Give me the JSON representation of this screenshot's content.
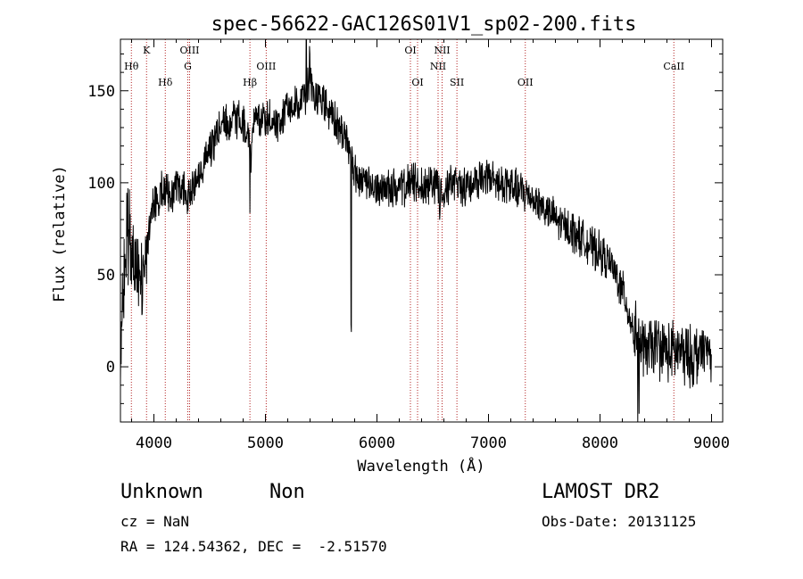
{
  "chart_data": {
    "type": "line",
    "title": "spec-56622-GAC126S01V1_sp02-200.fits",
    "xlabel": "Wavelength (Å)",
    "ylabel": "Flux (relative)",
    "xlim": [
      3700,
      9100
    ],
    "ylim": [
      -30,
      178
    ],
    "xticks": [
      4000,
      5000,
      6000,
      7000,
      8000,
      9000
    ],
    "yticks": [
      0,
      50,
      100,
      150
    ],
    "grid": false,
    "legend": "none",
    "spectrum_anchors": [
      [
        3700,
        15
      ],
      [
        3720,
        40
      ],
      [
        3760,
        75
      ],
      [
        3800,
        62
      ],
      [
        3850,
        52
      ],
      [
        3900,
        50
      ],
      [
        3950,
        70
      ],
      [
        4000,
        88
      ],
      [
        4050,
        92
      ],
      [
        4100,
        98
      ],
      [
        4150,
        92
      ],
      [
        4200,
        100
      ],
      [
        4300,
        95
      ],
      [
        4400,
        105
      ],
      [
        4500,
        118
      ],
      [
        4600,
        130
      ],
      [
        4700,
        134
      ],
      [
        4800,
        133
      ],
      [
        4870,
        115
      ],
      [
        4900,
        132
      ],
      [
        5000,
        135
      ],
      [
        5100,
        132
      ],
      [
        5200,
        140
      ],
      [
        5300,
        143
      ],
      [
        5400,
        152
      ],
      [
        5500,
        145
      ],
      [
        5600,
        135
      ],
      [
        5700,
        126
      ],
      [
        5760,
        118
      ],
      [
        5800,
        105
      ],
      [
        5900,
        98
      ],
      [
        6000,
        96
      ],
      [
        6100,
        98
      ],
      [
        6200,
        96
      ],
      [
        6300,
        100
      ],
      [
        6400,
        98
      ],
      [
        6500,
        100
      ],
      [
        6600,
        97
      ],
      [
        6700,
        100
      ],
      [
        6800,
        98
      ],
      [
        6900,
        102
      ],
      [
        7000,
        102
      ],
      [
        7100,
        100
      ],
      [
        7200,
        98
      ],
      [
        7300,
        95
      ],
      [
        7400,
        92
      ],
      [
        7500,
        86
      ],
      [
        7600,
        80
      ],
      [
        7700,
        76
      ],
      [
        7800,
        72
      ],
      [
        7900,
        66
      ],
      [
        8000,
        62
      ],
      [
        8100,
        55
      ],
      [
        8200,
        42
      ],
      [
        8300,
        20
      ],
      [
        8400,
        8
      ],
      [
        8500,
        12
      ],
      [
        8600,
        8
      ],
      [
        8700,
        8
      ],
      [
        8800,
        5
      ],
      [
        8900,
        8
      ],
      [
        9000,
        8
      ]
    ],
    "spectrum_features": [
      [
        3934,
        -18
      ],
      [
        4102,
        -12
      ],
      [
        4340,
        -10
      ],
      [
        4861,
        -30
      ],
      [
        5367,
        25
      ],
      [
        5397,
        22
      ],
      [
        5768,
        -90
      ],
      [
        6563,
        -18
      ],
      [
        8340,
        -35
      ],
      [
        8350,
        -25
      ]
    ],
    "noise_amplitude": 9,
    "lines": [
      {
        "label": "Hθ",
        "wavelength": 3798,
        "row": 2
      },
      {
        "label": "K",
        "wavelength": 3934,
        "row": 0
      },
      {
        "label": "Hδ",
        "wavelength": 4102,
        "row": 3
      },
      {
        "label": "OIII",
        "wavelength": 4320,
        "row": 0
      },
      {
        "label": "G",
        "wavelength": 4304,
        "row": 2
      },
      {
        "label": "Hβ",
        "wavelength": 4861,
        "row": 3
      },
      {
        "label": "OIII",
        "wavelength": 5007,
        "row": 2
      },
      {
        "label": "OI",
        "wavelength": 6300,
        "row": 0
      },
      {
        "label": "OI",
        "wavelength": 6364,
        "row": 3
      },
      {
        "label": "NII",
        "wavelength": 6548,
        "row": 2
      },
      {
        "label": "NII",
        "wavelength": 6584,
        "row": 0
      },
      {
        "label": "SII",
        "wavelength": 6717,
        "row": 3
      },
      {
        "label": "OII",
        "wavelength": 7330,
        "row": 3
      },
      {
        "label": "CaII",
        "wavelength": 8662,
        "row": 2
      }
    ]
  },
  "info": {
    "class": "Unknown",
    "subclass": "Non",
    "survey": "LAMOST DR2",
    "cz": "cz = NaN",
    "obs_date": "Obs-Date: 20131125",
    "coords": "RA = 124.54362, DEC =  -2.51570"
  }
}
